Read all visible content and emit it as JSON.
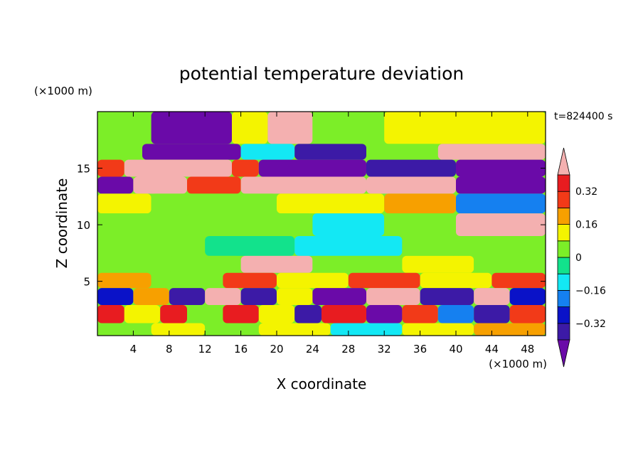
{
  "chart_data": {
    "type": "heatmap",
    "title": "potential temperature deviation",
    "xlabel": "X coordinate",
    "ylabel": "Z coordinate",
    "x_units": "(×1000 m)",
    "y_units": "(×1000 m)",
    "time_label": "t=824400 s",
    "xlim": [
      0,
      50
    ],
    "ylim": [
      0.2,
      20
    ],
    "x_ticks": [
      4,
      8,
      12,
      16,
      20,
      24,
      28,
      32,
      36,
      40,
      44,
      48
    ],
    "y_ticks": [
      5,
      10,
      15
    ],
    "colorbar": {
      "levels": [
        -0.4,
        -0.32,
        -0.24,
        -0.16,
        -0.08,
        0,
        0.08,
        0.16,
        0.24,
        0.32,
        0.4
      ],
      "labels": [
        "0.32",
        "0.16",
        "0",
        "−0.16",
        "−0.32"
      ],
      "label_values": [
        0.32,
        0.16,
        0,
        -0.16,
        -0.32
      ],
      "colors": [
        "#6a0aa8",
        "#3c1aa6",
        "#0a12c8",
        "#1580f0",
        "#13e8f4",
        "#12e28c",
        "#7cee28",
        "#f4f400",
        "#f7a000",
        "#f23a18",
        "#e81c20",
        "#f4b0b0"
      ]
    },
    "bands": [
      {
        "z": 17.8,
        "segments": [
          [
            0,
            6,
            0
          ],
          [
            6,
            15,
            -0.45
          ],
          [
            15,
            19,
            0.1
          ],
          [
            19,
            24,
            0.45
          ],
          [
            24,
            32,
            0.05
          ],
          [
            32,
            50,
            0.1
          ]
        ]
      },
      {
        "z": 16.5,
        "segments": [
          [
            0,
            5,
            0.05
          ],
          [
            5,
            16,
            -0.45
          ],
          [
            16,
            22,
            -0.1
          ],
          [
            22,
            30,
            -0.36
          ],
          [
            30,
            38,
            0.05
          ],
          [
            38,
            50,
            0.45
          ]
        ]
      },
      {
        "z": 15.0,
        "segments": [
          [
            0,
            3,
            0.3
          ],
          [
            3,
            15,
            0.45
          ],
          [
            15,
            18,
            0.25
          ],
          [
            18,
            30,
            -0.45
          ],
          [
            30,
            40,
            -0.36
          ],
          [
            40,
            50,
            -0.45
          ]
        ]
      },
      {
        "z": 13.5,
        "segments": [
          [
            0,
            4,
            -0.45
          ],
          [
            4,
            10,
            0.45
          ],
          [
            10,
            16,
            0.3
          ],
          [
            16,
            30,
            0.45
          ],
          [
            30,
            40,
            0.45
          ],
          [
            40,
            50,
            -0.45
          ]
        ]
      },
      {
        "z": 12.0,
        "segments": [
          [
            0,
            6,
            0.12
          ],
          [
            6,
            20,
            0.05
          ],
          [
            20,
            32,
            0.15
          ],
          [
            32,
            40,
            0.2
          ],
          [
            40,
            50,
            -0.2
          ]
        ]
      },
      {
        "z": 10.0,
        "segments": [
          [
            0,
            10,
            0.05
          ],
          [
            10,
            24,
            0.0
          ],
          [
            24,
            32,
            -0.1
          ],
          [
            32,
            40,
            0.0
          ],
          [
            40,
            50,
            0.45
          ]
        ]
      },
      {
        "z": 8.0,
        "segments": [
          [
            0,
            12,
            0.0
          ],
          [
            12,
            22,
            -0.06
          ],
          [
            22,
            34,
            -0.1
          ],
          [
            34,
            40,
            0.0
          ],
          [
            40,
            50,
            0.05
          ]
        ]
      },
      {
        "z": 6.5,
        "segments": [
          [
            0,
            8,
            0.0
          ],
          [
            8,
            16,
            0.05
          ],
          [
            16,
            24,
            0.45
          ],
          [
            24,
            34,
            0.0
          ],
          [
            34,
            42,
            0.1
          ],
          [
            42,
            50,
            0.05
          ]
        ]
      },
      {
        "z": 5.0,
        "segments": [
          [
            0,
            6,
            0.2
          ],
          [
            6,
            14,
            0.05
          ],
          [
            14,
            20,
            0.3
          ],
          [
            20,
            28,
            0.1
          ],
          [
            28,
            36,
            0.3
          ],
          [
            36,
            44,
            0.15
          ],
          [
            44,
            50,
            0.25
          ]
        ]
      },
      {
        "z": 3.8,
        "segments": [
          [
            0,
            4,
            -0.3
          ],
          [
            4,
            8,
            0.2
          ],
          [
            8,
            12,
            -0.36
          ],
          [
            12,
            16,
            0.45
          ],
          [
            16,
            20,
            -0.4
          ],
          [
            20,
            24,
            0.1
          ],
          [
            24,
            30,
            -0.45
          ],
          [
            30,
            36,
            0.45
          ],
          [
            36,
            42,
            -0.36
          ],
          [
            42,
            46,
            0.45
          ],
          [
            46,
            50,
            -0.3
          ]
        ]
      },
      {
        "z": 2.0,
        "segments": [
          [
            0,
            3,
            0.35
          ],
          [
            3,
            7,
            0.12
          ],
          [
            7,
            10,
            0.35
          ],
          [
            10,
            14,
            0.05
          ],
          [
            14,
            18,
            0.35
          ],
          [
            18,
            22,
            0.15
          ],
          [
            22,
            25,
            -0.36
          ],
          [
            25,
            30,
            0.35
          ],
          [
            30,
            34,
            -0.45
          ],
          [
            34,
            38,
            0.3
          ],
          [
            38,
            42,
            -0.2
          ],
          [
            42,
            46,
            -0.36
          ],
          [
            46,
            50,
            0.3
          ]
        ]
      },
      {
        "z": 0.6,
        "segments": [
          [
            0,
            6,
            0.05
          ],
          [
            6,
            12,
            0.15
          ],
          [
            12,
            18,
            0.0
          ],
          [
            18,
            26,
            0.1
          ],
          [
            26,
            34,
            -0.1
          ],
          [
            34,
            42,
            0.1
          ],
          [
            42,
            50,
            0.2
          ]
        ]
      }
    ]
  }
}
